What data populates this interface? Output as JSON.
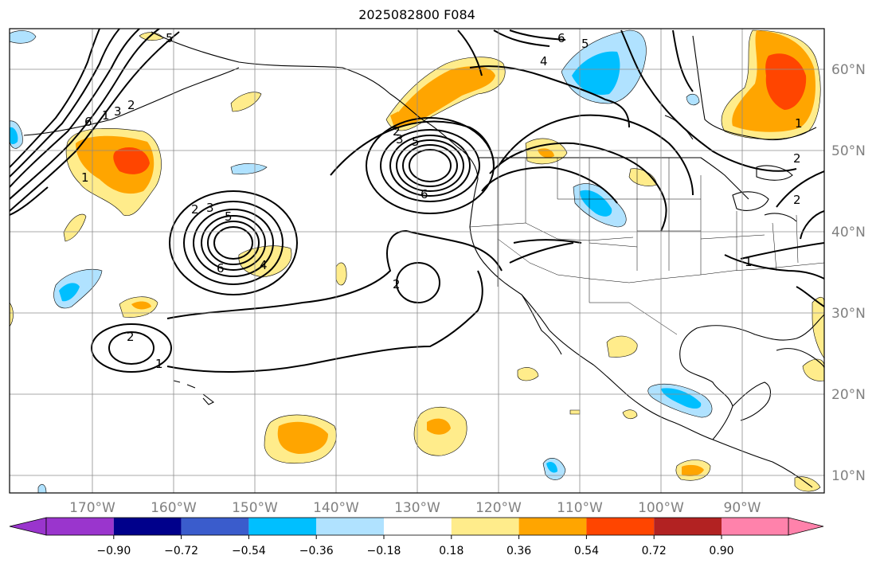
{
  "title": "2025082800 F084",
  "lon_labels": [
    "170°W",
    "160°W",
    "150°W",
    "140°W",
    "130°W",
    "120°W",
    "110°W",
    "100°W",
    "90°W"
  ],
  "lat_labels": [
    "60°N",
    "50°N",
    "40°N",
    "30°N",
    "20°N",
    "10°N"
  ],
  "contour_labels": [
    "5",
    "6",
    "5",
    "4",
    "6",
    "1",
    "3",
    "2",
    "1",
    "2",
    "3",
    "5",
    "6",
    "4",
    "2",
    "3",
    "5",
    "6",
    "2",
    "2",
    "1",
    "1",
    "1",
    "2",
    "2"
  ],
  "colorbar": {
    "ticks": [
      "−0.90",
      "−0.72",
      "−0.54",
      "−0.36",
      "−0.18",
      "0.18",
      "0.36",
      "0.54",
      "0.72",
      "0.90"
    ],
    "colors": [
      "#9a35cd",
      "#00008b",
      "#3a5ccc",
      "#00bfff",
      "#b0e2ff",
      "#ffffff",
      "#ffec8b",
      "#ffa500",
      "#ff4500",
      "#b22222",
      "#ff82ab"
    ]
  }
}
